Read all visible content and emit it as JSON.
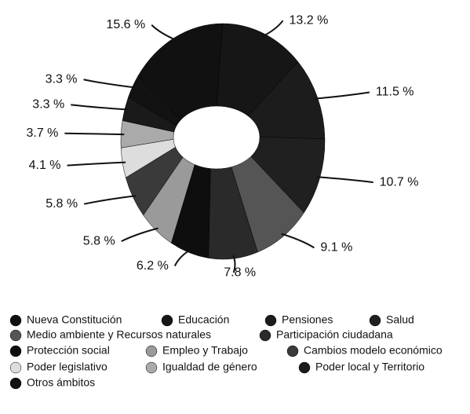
{
  "chart_data": {
    "type": "donut",
    "categories": [
      "Nueva Constitución",
      "Educación",
      "Pensiones",
      "Salud",
      "Medio ambiente y Recursos naturales",
      "Participación ciudadana",
      "Protección social",
      "Empleo y Trabajo",
      "Cambios modelo económico",
      "Poder legislativo",
      "Igualdad de género",
      "Poder local y Territorio",
      "Otros ámbitos"
    ],
    "values": [
      15.6,
      13.2,
      11.5,
      10.7,
      9.1,
      7.8,
      6.2,
      5.8,
      5.8,
      4.1,
      3.7,
      3.3,
      3.3
    ],
    "value_labels": [
      "15.6 %",
      "13.2 %",
      "11.5 %",
      "10.7 %",
      "9.1 %",
      "7.8 %",
      "6.2 %",
      "5.8 %",
      "5.8 %",
      "4.1 %",
      "3.7 %",
      "3.3 %",
      "3.3 %"
    ],
    "colors": [
      "#111111",
      "#161616",
      "#1c1c1c",
      "#202020",
      "#555555",
      "#2a2a2a",
      "#0e0e0e",
      "#9a9a9a",
      "#3a3a3a",
      "#dddddd",
      "#aaaaaa",
      "#1a1a1a",
      "#121212"
    ]
  }
}
